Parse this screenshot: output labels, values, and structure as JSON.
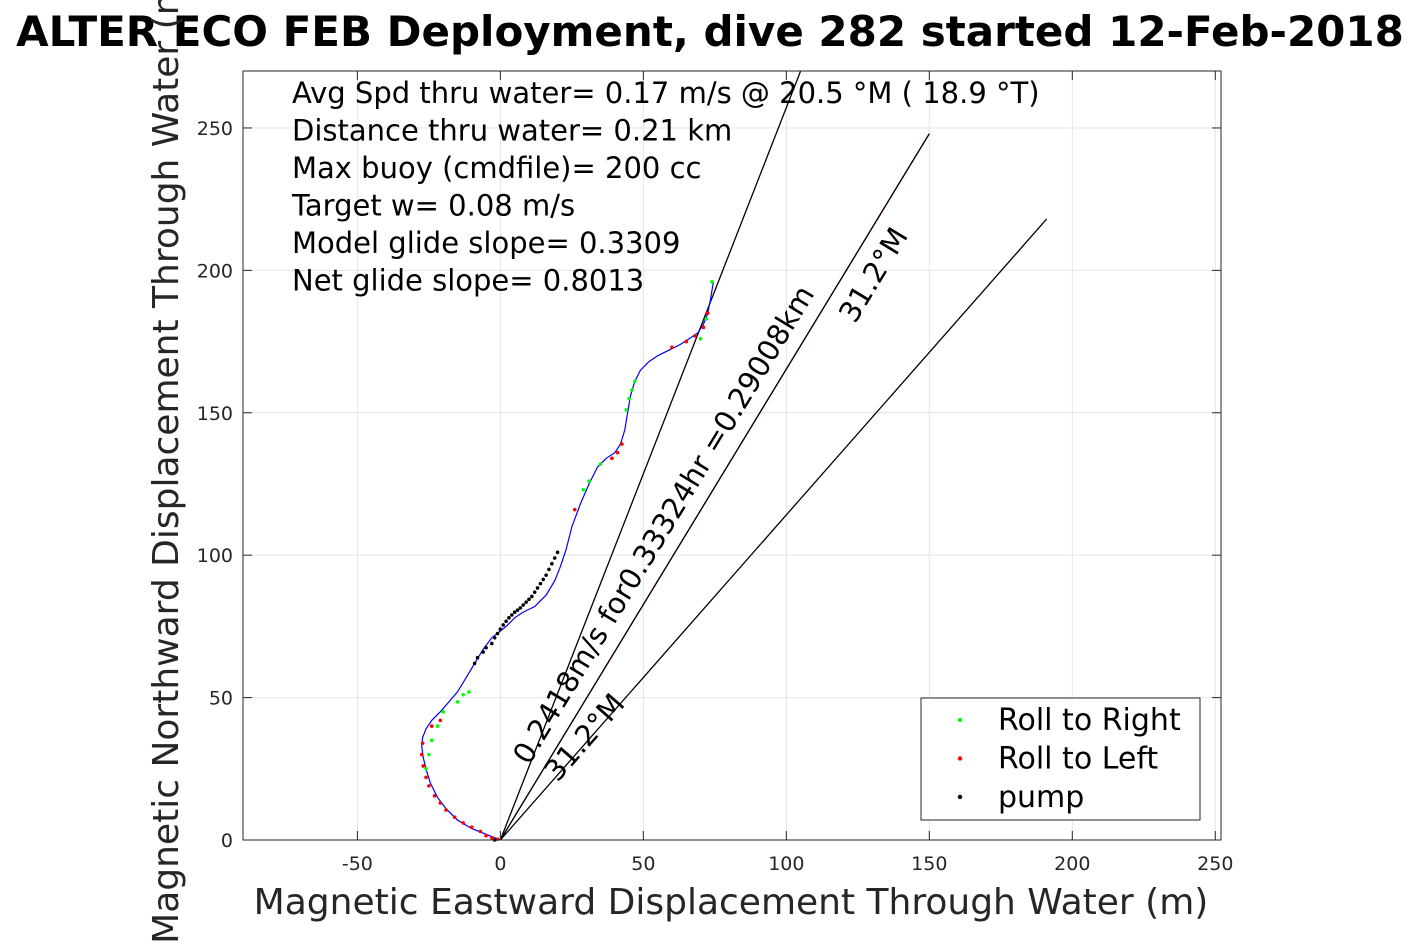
{
  "chart_data": {
    "type": "scatter",
    "title": "ALTER ECO FEB Deployment, dive 282 started 12-Feb-2018",
    "xlabel": "Magnetic Eastward Displacement Through Water (m)",
    "ylabel": "Magnetic Northward Displacement Through Water (m)",
    "xlim": [
      -90,
      252
    ],
    "ylim": [
      0,
      270
    ],
    "xticks": [
      -50,
      0,
      50,
      100,
      150,
      200,
      250
    ],
    "yticks": [
      0,
      50,
      100,
      150,
      200,
      250
    ],
    "xtick_labels": [
      "-50",
      "0",
      "50",
      "100",
      "150",
      "200",
      "250"
    ],
    "ytick_labels": [
      "0",
      "50",
      "100",
      "150",
      "200",
      "250"
    ],
    "grid": true,
    "legend_position": "bottom-right",
    "stats": [
      "Avg Spd thru water=  0.17 m/s @  20.5 °M ( 18.9 °T)",
      "Distance thru water=  0.21 km",
      "Max buoy (cmdfile)= 200 cc",
      "Target w= 0.08 m/s",
      "Model glide slope= 0.3309",
      "Net glide slope= 0.8013"
    ],
    "track": {
      "color": "#0000ff",
      "x": [
        0,
        -5,
        -10,
        -15,
        -19,
        -22,
        -24.5,
        -26,
        -27,
        -27.5,
        -27.2,
        -26,
        -24,
        -21,
        -18,
        -15,
        -12,
        -9,
        -6,
        -3,
        2,
        5,
        8,
        12,
        16,
        19,
        21,
        23,
        25,
        28,
        31,
        34,
        37,
        40,
        42,
        43.5,
        44.5,
        45.5,
        47,
        49,
        52,
        55,
        59,
        63,
        66,
        69,
        71,
        72.5,
        73.5,
        74.5
      ],
      "y": [
        0,
        2,
        4,
        7,
        11,
        15,
        20,
        25,
        29,
        33,
        36,
        39,
        42,
        45,
        48.5,
        52,
        57,
        62,
        67,
        71,
        75,
        78,
        80,
        82,
        86,
        91,
        96,
        102,
        110,
        118,
        125,
        131,
        134,
        136,
        139,
        144,
        150,
        156,
        161,
        165,
        168,
        170,
        172,
        174,
        176,
        178,
        181,
        185,
        190,
        196
      ]
    },
    "series": [
      {
        "name": "Roll to Right",
        "color": "#00ff00",
        "x": [
          -26,
          -25,
          -24,
          -22,
          -20,
          -15,
          -13,
          -11,
          29,
          31,
          35,
          44,
          45,
          46,
          47,
          70,
          72,
          74
        ],
        "y": [
          25,
          30,
          35,
          40,
          45,
          48.5,
          51,
          52,
          123,
          126,
          132,
          151,
          155,
          158,
          161,
          176,
          183,
          196
        ]
      },
      {
        "name": "Roll to Left",
        "color": "#ff0000",
        "x": [
          -1,
          -3,
          -5,
          -7,
          -10,
          -13,
          -16,
          -19,
          -21,
          -23,
          -25,
          -26,
          -27,
          -27.5,
          -27.2,
          -24,
          -21,
          26,
          39,
          41,
          42.5,
          60,
          65,
          68,
          71,
          72.5
        ],
        "y": [
          0.3,
          0.8,
          1.5,
          3,
          4.5,
          6,
          8,
          10.5,
          13,
          15.5,
          19,
          22,
          26,
          30,
          34,
          40,
          42,
          116,
          134,
          136,
          139,
          173,
          175,
          177,
          180,
          185
        ]
      },
      {
        "name": "pump",
        "color": "#000000",
        "x": [
          -2,
          -9,
          -8,
          -6,
          -5,
          -3,
          -2,
          -1,
          0,
          1,
          2,
          3,
          4,
          5,
          6,
          7,
          8,
          9,
          10,
          11,
          12,
          13,
          14,
          15,
          16,
          17,
          18,
          19,
          20
        ],
        "y": [
          0,
          62,
          64,
          66,
          67.5,
          69,
          71,
          72.5,
          74,
          75.5,
          76.8,
          78,
          79,
          80,
          80.7,
          81.5,
          82.5,
          83.5,
          84.5,
          85.5,
          87,
          88.5,
          90,
          91.5,
          93,
          95,
          97,
          99,
          101
        ]
      }
    ],
    "lines": [
      {
        "color": "#000000",
        "x": [
          0,
          105
        ],
        "y": [
          0,
          270
        ]
      },
      {
        "color": "#ff00ff",
        "x": [
          0,
          150
        ],
        "y": [
          0,
          248
        ]
      },
      {
        "color": "#000000",
        "x": [
          0,
          150
        ],
        "y": [
          0,
          248
        ]
      },
      {
        "color": "#000000",
        "x": [
          0,
          191
        ],
        "y": [
          0,
          218
        ]
      }
    ],
    "annotations": [
      {
        "text": "0.2418m/s for0.33324hr =0.29008km",
        "x": 10,
        "y": 26,
        "angle": -58.8
      },
      {
        "text": "31.2°M",
        "x": 20,
        "y": 20,
        "angle": -48.8
      },
      {
        "text": "31.2°M",
        "x": 124,
        "y": 181,
        "angle": -58.8
      }
    ]
  }
}
